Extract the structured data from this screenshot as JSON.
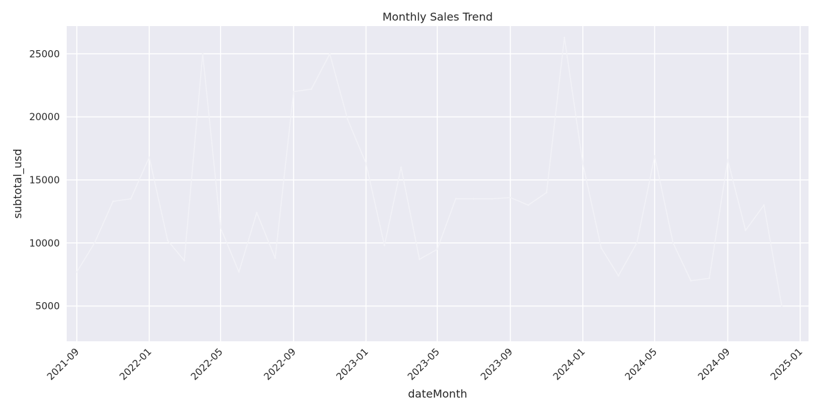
{
  "chart_data": {
    "type": "line",
    "title": "Monthly Sales Trend",
    "xlabel": "dateMonth",
    "ylabel": "subtotal_usd",
    "x_ticks": [
      "2021-09",
      "2022-01",
      "2022-05",
      "2022-09",
      "2023-01",
      "2023-05",
      "2023-09",
      "2024-01",
      "2024-05",
      "2024-09",
      "2025-01"
    ],
    "y_ticks": [
      5000,
      10000,
      15000,
      20000,
      25000
    ],
    "xlim": [
      "2021-08-15",
      "2025-01-15"
    ],
    "ylim": [
      2200,
      27200
    ],
    "grid": true,
    "legend": "none",
    "colors": {
      "background": "#eaeaf2",
      "grid": "#ffffff",
      "line": "#f2f2f7",
      "text": "#262626"
    },
    "series": [
      {
        "x": [
          "2021-09",
          "2021-10",
          "2021-11",
          "2021-12",
          "2022-01",
          "2022-02",
          "2022-03",
          "2022-04",
          "2022-05",
          "2022-06",
          "2022-07",
          "2022-08",
          "2022-09",
          "2022-10",
          "2022-11",
          "2022-12",
          "2023-01",
          "2023-02",
          "2023-03",
          "2023-04",
          "2023-05",
          "2023-06",
          "2023-07",
          "2023-08",
          "2023-09",
          "2023-10",
          "2023-11",
          "2023-12",
          "2024-01",
          "2024-02",
          "2024-03",
          "2024-04",
          "2024-05",
          "2024-06",
          "2024-07",
          "2024-08",
          "2024-09",
          "2024-10",
          "2024-11",
          "2024-12"
        ],
        "values": [
          7700,
          10000,
          13300,
          13500,
          16800,
          10200,
          8600,
          25000,
          11200,
          7700,
          12400,
          8800,
          22000,
          22200,
          25000,
          19800,
          16300,
          9800,
          16000,
          8700,
          9500,
          13500,
          13500,
          13500,
          13600,
          13000,
          14000,
          26300,
          16300,
          9600,
          7400,
          10000,
          16900,
          10000,
          7000,
          7200,
          16600,
          11000,
          13000,
          5000
        ]
      }
    ]
  }
}
